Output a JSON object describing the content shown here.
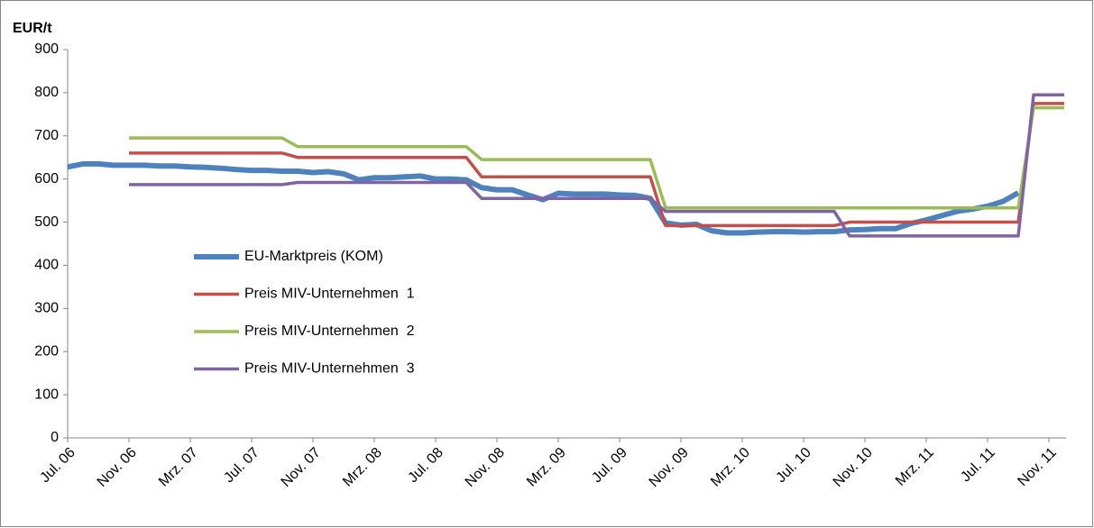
{
  "chart_data": {
    "type": "line",
    "y_label": "EUR/t",
    "categories": [
      "Jul. 06",
      null,
      null,
      null,
      "Nov. 06",
      null,
      null,
      null,
      "Mrz. 07",
      null,
      null,
      null,
      "Jul. 07",
      null,
      null,
      null,
      "Nov. 07",
      null,
      null,
      null,
      "Mrz. 08",
      null,
      null,
      null,
      "Jul. 08",
      null,
      null,
      null,
      "Nov. 08",
      null,
      null,
      null,
      "Mrz. 09",
      null,
      null,
      null,
      "Jul. 09",
      null,
      null,
      null,
      "Nov. 09",
      null,
      null,
      null,
      "Mrz. 10",
      null,
      null,
      null,
      "Jul. 10",
      null,
      null,
      null,
      "Nov. 10",
      null,
      null,
      null,
      "Mrz. 11",
      null,
      null,
      null,
      "Jul. 11",
      null,
      null,
      null,
      "Nov. 11",
      null
    ],
    "series": [
      {
        "name": "EU-Marktpreis (KOM)",
        "color": "#4f81bd",
        "values": [
          628,
          635,
          635,
          632,
          632,
          632,
          630,
          630,
          628,
          627,
          625,
          622,
          620,
          620,
          618,
          618,
          615,
          617,
          612,
          598,
          603,
          603,
          605,
          607,
          600,
          600,
          598,
          580,
          575,
          575,
          563,
          552,
          567,
          565,
          565,
          565,
          563,
          562,
          555,
          498,
          493,
          495,
          480,
          475,
          475,
          477,
          478,
          478,
          477,
          478,
          478,
          482,
          483,
          485,
          485,
          497,
          505,
          515,
          525,
          530,
          537,
          548,
          568,
          null,
          null,
          null
        ]
      },
      {
        "name": "Preis MIV-Unternehmen  1",
        "color": "#c0504d",
        "values": [
          null,
          null,
          null,
          null,
          660,
          660,
          660,
          660,
          660,
          660,
          660,
          660,
          660,
          660,
          660,
          650,
          650,
          650,
          650,
          650,
          650,
          650,
          650,
          650,
          650,
          650,
          650,
          605,
          605,
          605,
          605,
          605,
          605,
          605,
          605,
          605,
          605,
          605,
          605,
          492,
          492,
          492,
          492,
          492,
          492,
          492,
          492,
          492,
          492,
          492,
          492,
          500,
          500,
          500,
          500,
          500,
          500,
          500,
          500,
          500,
          500,
          500,
          500,
          775,
          775,
          775
        ]
      },
      {
        "name": "Preis MIV-Unternehmen  2",
        "color": "#9bbb59",
        "values": [
          null,
          null,
          null,
          null,
          695,
          695,
          695,
          695,
          695,
          695,
          695,
          695,
          695,
          695,
          695,
          675,
          675,
          675,
          675,
          675,
          675,
          675,
          675,
          675,
          675,
          675,
          675,
          645,
          645,
          645,
          645,
          645,
          645,
          645,
          645,
          645,
          645,
          645,
          645,
          533,
          533,
          533,
          533,
          533,
          533,
          533,
          533,
          533,
          533,
          533,
          533,
          533,
          533,
          533,
          533,
          533,
          533,
          533,
          533,
          533,
          533,
          533,
          533,
          765,
          765,
          765
        ]
      },
      {
        "name": "Preis MIV-Unternehmen  3",
        "color": "#8064a2",
        "values": [
          null,
          null,
          null,
          null,
          587,
          587,
          587,
          587,
          587,
          587,
          587,
          587,
          587,
          587,
          587,
          592,
          592,
          592,
          592,
          592,
          592,
          592,
          592,
          592,
          592,
          592,
          592,
          555,
          555,
          555,
          555,
          555,
          555,
          555,
          555,
          555,
          555,
          555,
          555,
          525,
          525,
          525,
          525,
          525,
          525,
          525,
          525,
          525,
          525,
          525,
          525,
          468,
          468,
          468,
          468,
          468,
          468,
          468,
          468,
          468,
          468,
          468,
          468,
          795,
          795,
          795
        ]
      }
    ],
    "ylim": [
      0,
      900
    ],
    "yticks": [
      0,
      100,
      200,
      300,
      400,
      500,
      600,
      700,
      800,
      900
    ],
    "grid": false,
    "legend": "left"
  }
}
